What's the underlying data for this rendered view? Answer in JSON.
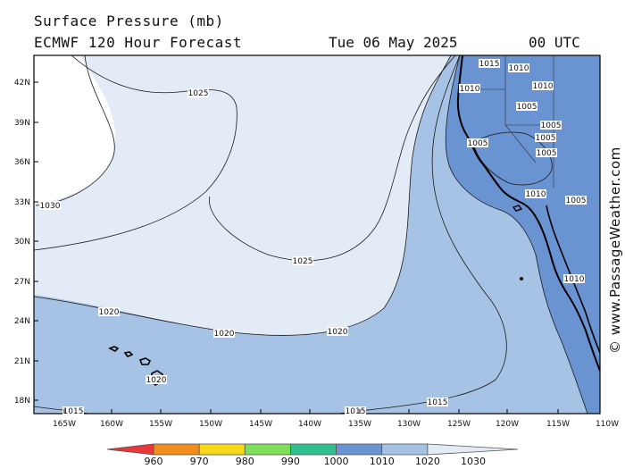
{
  "header": {
    "title": "Surface Pressure (mb)",
    "subtitle": "ECMWF 120 Hour Forecast",
    "date": "Tue 06 May 2025",
    "time": "00 UTC"
  },
  "credit": "© www.PassageWeather.com",
  "axes": {
    "lat_labels": [
      "42N",
      "39N",
      "36N",
      "33N",
      "30N",
      "27N",
      "24N",
      "21N",
      "18N"
    ],
    "lon_labels": [
      "165W",
      "160W",
      "155W",
      "150W",
      "145W",
      "140W",
      "135W",
      "130W",
      "125W",
      "120W",
      "115W",
      "110W"
    ]
  },
  "legend": {
    "labels": [
      "960",
      "970",
      "980",
      "990",
      "1000",
      "1010",
      "1020",
      "1030"
    ],
    "colors": [
      "#e8383a",
      "#f28c1c",
      "#f7d81a",
      "#7ee05a",
      "#30c090",
      "#6a93d2",
      "#a6c2e4",
      "#e3ebf7"
    ]
  },
  "map": {
    "fill_colors": {
      "lt1010": "#6a93d2",
      "b1010_1020": "#a6c2e4",
      "b1020_1030": "#e3ebf7",
      "gt1030": "#ffffff"
    },
    "isobar_labels": [
      "1030",
      "1025",
      "1025",
      "1020",
      "1020",
      "1020",
      "1020",
      "1015",
      "1015",
      "1015",
      "1015",
      "1010",
      "1010",
      "1010",
      "1010",
      "1005",
      "1005",
      "1005",
      "1005",
      "1005",
      "1005",
      "1010"
    ]
  }
}
